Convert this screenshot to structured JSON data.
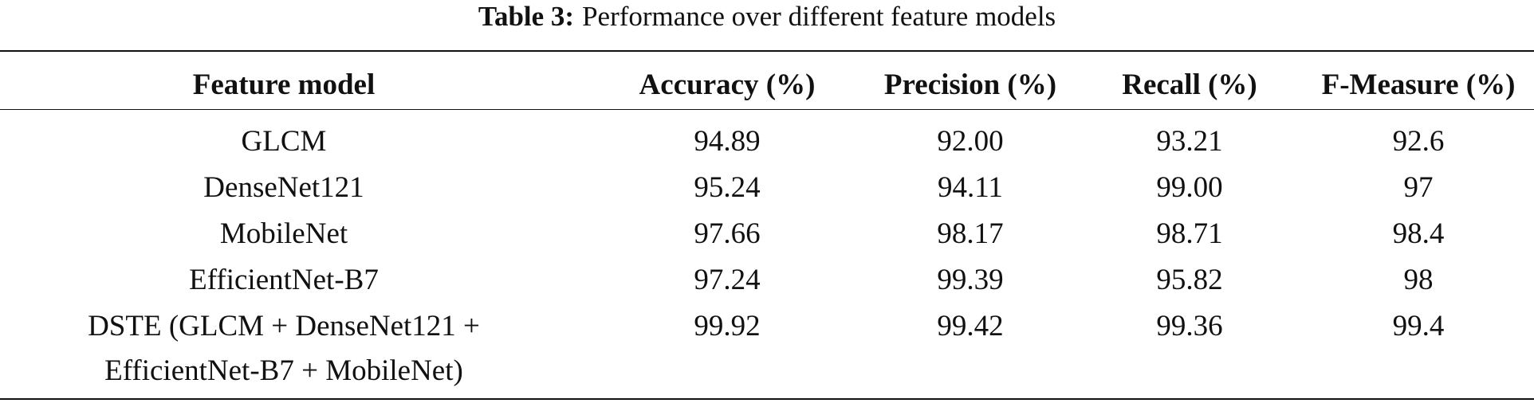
{
  "caption": {
    "label": "Table 3:",
    "text": "Performance over different feature models"
  },
  "table": {
    "header": [
      "Feature model",
      "Accuracy (%)",
      "Precision (%)",
      "Recall (%)",
      "F-Measure (%)"
    ],
    "rows": [
      [
        "GLCM",
        "94.89",
        "92.00",
        "93.21",
        "92.6"
      ],
      [
        "DenseNet121",
        "95.24",
        "94.11",
        "99.00",
        "97"
      ],
      [
        "MobileNet",
        "97.66",
        "98.17",
        "98.71",
        "98.4"
      ],
      [
        "EfficientNet-B7",
        "97.24",
        "99.39",
        "95.82",
        "98"
      ],
      [
        "DSTE (GLCM + DenseNet121 + EfficientNet-B7 + MobileNet)",
        "99.92",
        "99.42",
        "99.36",
        "99.4"
      ]
    ]
  }
}
